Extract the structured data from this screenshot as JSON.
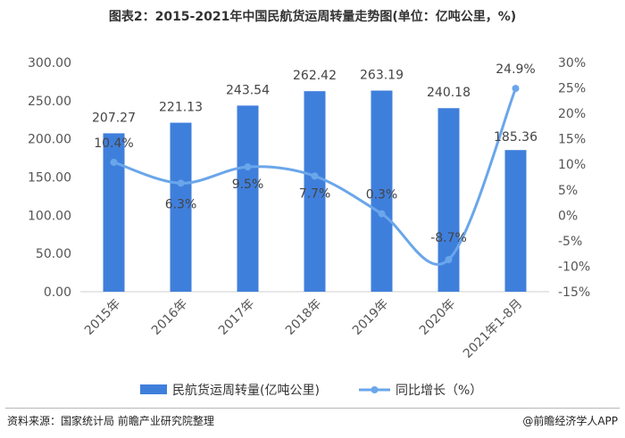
{
  "title": "图表2：2015-2021年中国民航货运周转量走势图(单位：亿吨公里，%)",
  "source": "资料来源：国家统计局 前瞻产业研究院整理",
  "brand": "@前瞻经济学人APP",
  "colors": {
    "bar": "#3f7fdc",
    "line": "#6aa6ea"
  },
  "chart_data": {
    "type": "bar",
    "categories": [
      "2015年",
      "2016年",
      "2017年",
      "2018年",
      "2019年",
      "2020年",
      "2021年1-8月"
    ],
    "series": [
      {
        "name": "民航货运周转量(亿吨公里)",
        "type": "bar",
        "axis": "left",
        "values": [
          207.27,
          221.13,
          243.54,
          262.42,
          263.19,
          240.18,
          185.36
        ],
        "labels": [
          "207.27",
          "221.13",
          "243.54",
          "262.42",
          "263.19",
          "240.18",
          "185.36"
        ]
      },
      {
        "name": "同比增长（%）",
        "type": "line",
        "axis": "right",
        "values": [
          10.4,
          6.3,
          9.5,
          7.7,
          0.3,
          -8.7,
          24.9
        ],
        "labels": [
          "10.4%",
          "6.3%",
          "9.5%",
          "7.7%",
          "0.3%",
          "-8.7%",
          "24.9%"
        ]
      }
    ],
    "y_left": {
      "range": [
        0,
        300
      ],
      "ticks": [
        "0.00",
        "50.00",
        "100.00",
        "150.00",
        "200.00",
        "250.00",
        "300.00"
      ]
    },
    "y_right": {
      "range": [
        -15,
        30
      ],
      "ticks": [
        "-15%",
        "-10%",
        "-5%",
        "0%",
        "5%",
        "10%",
        "15%",
        "20%",
        "25%",
        "30%"
      ]
    },
    "legend_position": "bottom",
    "grid": false
  }
}
